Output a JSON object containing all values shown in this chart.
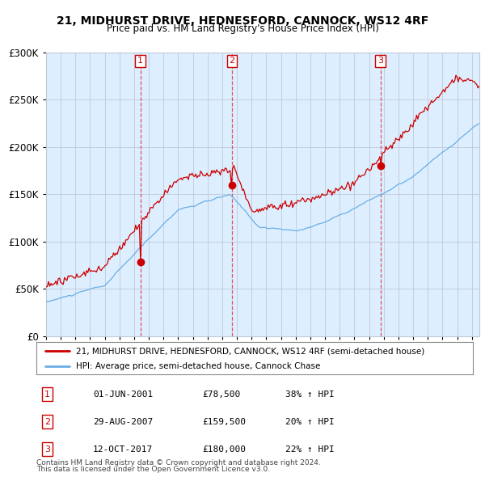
{
  "title": "21, MIDHURST DRIVE, HEDNESFORD, CANNOCK, WS12 4RF",
  "subtitle": "Price paid vs. HM Land Registry's House Price Index (HPI)",
  "legend_line1": "21, MIDHURST DRIVE, HEDNESFORD, CANNOCK, WS12 4RF (semi-detached house)",
  "legend_line2": "HPI: Average price, semi-detached house, Cannock Chase",
  "footer1": "Contains HM Land Registry data © Crown copyright and database right 2024.",
  "footer2": "This data is licensed under the Open Government Licence v3.0.",
  "transactions": [
    {
      "num": 1,
      "date": "01-JUN-2001",
      "price": 78500,
      "pct": "38%",
      "dir": "↑"
    },
    {
      "num": 2,
      "date": "29-AUG-2007",
      "price": 159500,
      "pct": "20%",
      "dir": "↑"
    },
    {
      "num": 3,
      "date": "12-OCT-2017",
      "price": 180000,
      "pct": "22%",
      "dir": "↑"
    }
  ],
  "transaction_dates_year": [
    2001.42,
    2007.66,
    2017.78
  ],
  "transaction_prices": [
    78500,
    159500,
    180000
  ],
  "hpi_color": "#6aafe6",
  "price_color": "#cc0000",
  "dashed_color_red": "#dd4444",
  "dashed_color_blue": "#aabbdd",
  "bg_color": "#ddeeff",
  "grid_color": "#c0c8d8",
  "ylim": [
    0,
    300000
  ],
  "xlim_start": 1995.0,
  "xlim_end": 2024.5,
  "yticks": [
    0,
    50000,
    100000,
    150000,
    200000,
    250000,
    300000
  ],
  "xticks": [
    1995,
    1996,
    1997,
    1998,
    1999,
    2000,
    2001,
    2002,
    2003,
    2004,
    2005,
    2006,
    2007,
    2008,
    2009,
    2010,
    2011,
    2012,
    2013,
    2014,
    2015,
    2016,
    2017,
    2018,
    2019,
    2020,
    2021,
    2022,
    2023,
    2024
  ]
}
